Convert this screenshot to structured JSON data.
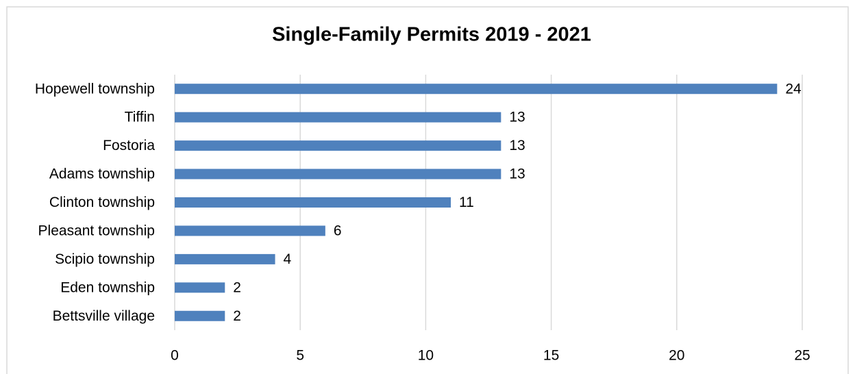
{
  "chart_data": {
    "type": "bar",
    "orientation": "horizontal",
    "title": "Single-Family Permits 2019 - 2021",
    "categories": [
      "Hopewell township",
      "Tiffin",
      "Fostoria",
      "Adams township",
      "Clinton township",
      "Pleasant township",
      "Scipio township",
      "Eden township",
      "Bettsville village"
    ],
    "values": [
      24,
      13,
      13,
      13,
      11,
      6,
      4,
      2,
      2
    ],
    "color": "#4f81bd",
    "xlim": [
      0,
      25
    ],
    "xticks": [
      0,
      5,
      10,
      15,
      20,
      25
    ],
    "grid": true
  }
}
